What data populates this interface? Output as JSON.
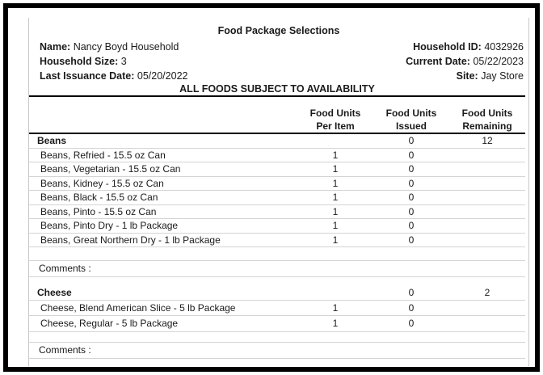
{
  "title": "Food Package Selections",
  "info": {
    "left": [
      {
        "label": "Name:",
        "value": "Nancy Boyd Household"
      },
      {
        "label": "Household Size:",
        "value": "3"
      },
      {
        "label": "Last Issuance Date:",
        "value": "05/20/2022"
      }
    ],
    "right": [
      {
        "label": "Household ID:",
        "value": "4032926"
      },
      {
        "label": "Current Date:",
        "value": "05/22/2023"
      },
      {
        "label": "Site:",
        "value": "Jay Store"
      }
    ]
  },
  "notice": "ALL FOODS SUBJECT TO AVAILABILITY",
  "table": {
    "columns": [
      {
        "line1": "Food Units",
        "line2": "Per Item"
      },
      {
        "line1": "Food Units",
        "line2": "Issued"
      },
      {
        "line1": "Food Units",
        "line2": "Remaining"
      }
    ]
  },
  "sections": [
    {
      "category": "Beans",
      "issued": "0",
      "remaining": "12",
      "items": [
        {
          "name": "Beans, Refried - 15.5 oz Can",
          "per_item": "1",
          "issued": "0"
        },
        {
          "name": "Beans, Vegetarian - 15.5 oz Can",
          "per_item": "1",
          "issued": "0"
        },
        {
          "name": "Beans, Kidney - 15.5 oz Can",
          "per_item": "1",
          "issued": "0"
        },
        {
          "name": "Beans, Black - 15.5 oz Can",
          "per_item": "1",
          "issued": "0"
        },
        {
          "name": "Beans, Pinto - 15.5 oz Can",
          "per_item": "1",
          "issued": "0"
        },
        {
          "name": "Beans, Pinto Dry - 1 lb Package",
          "per_item": "1",
          "issued": "0"
        },
        {
          "name": "Beans, Great Northern Dry - 1 lb Package",
          "per_item": "1",
          "issued": "0"
        }
      ],
      "comments_label": "Comments :"
    },
    {
      "category": "Cheese",
      "issued": "0",
      "remaining": "2",
      "items": [
        {
          "name": "Cheese, Blend American Slice - 5 lb Package",
          "per_item": "1",
          "issued": "0"
        },
        {
          "name": "Cheese, Regular - 5 lb Package",
          "per_item": "1",
          "issued": "0"
        }
      ],
      "comments_label": "Comments :"
    }
  ],
  "colors": {
    "frame": "#000000",
    "header_rule": "#000000",
    "row_line": "#d4d4d4",
    "text": "#1a1a1a"
  }
}
